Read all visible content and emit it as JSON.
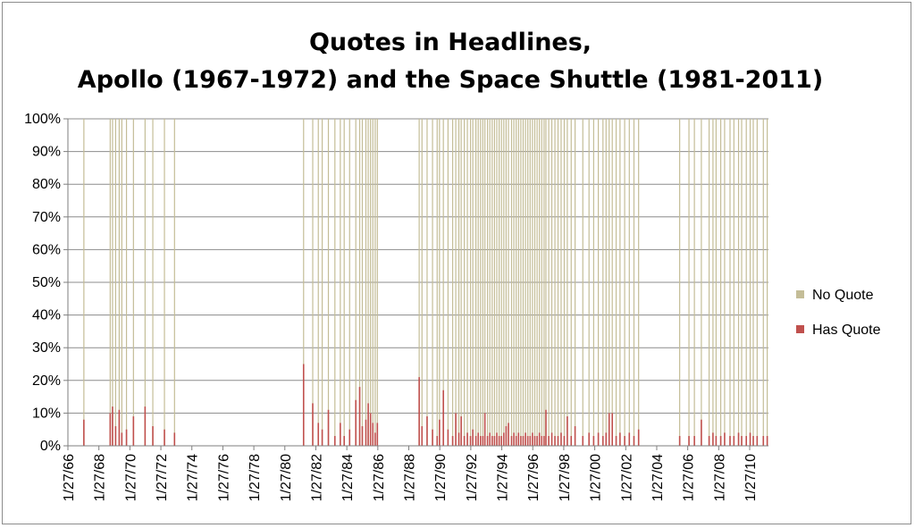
{
  "chart_data": {
    "type": "bar",
    "stacked": "percent",
    "title": [
      "Quotes in Headlines,",
      "Apollo (1967-1972) and the Space Shuttle (1981-2011)"
    ],
    "xlabel": "",
    "ylabel": "",
    "ylim": [
      0,
      100
    ],
    "y_ticks": [
      "0%",
      "10%",
      "20%",
      "30%",
      "40%",
      "50%",
      "60%",
      "70%",
      "80%",
      "90%",
      "100%"
    ],
    "x_range": [
      1966.07,
      2011.28
    ],
    "x_ticks": [
      {
        "label": "1/27/66",
        "x": 1966.07
      },
      {
        "label": "1/27/68",
        "x": 1968.07
      },
      {
        "label": "1/27/70",
        "x": 1970.07
      },
      {
        "label": "1/27/72",
        "x": 1972.07
      },
      {
        "label": "1/27/74",
        "x": 1974.07
      },
      {
        "label": "1/27/76",
        "x": 1976.07
      },
      {
        "label": "1/27/78",
        "x": 1978.07
      },
      {
        "label": "1/27/80",
        "x": 1980.07
      },
      {
        "label": "1/27/82",
        "x": 1982.07
      },
      {
        "label": "1/27/84",
        "x": 1984.07
      },
      {
        "label": "1/27/86",
        "x": 1986.07
      },
      {
        "label": "1/27/88",
        "x": 1988.07
      },
      {
        "label": "1/27/90",
        "x": 1990.07
      },
      {
        "label": "1/27/92",
        "x": 1992.07
      },
      {
        "label": "1/27/94",
        "x": 1994.07
      },
      {
        "label": "1/27/96",
        "x": 1996.07
      },
      {
        "label": "1/27/98",
        "x": 1998.07
      },
      {
        "label": "1/27/00",
        "x": 2000.07
      },
      {
        "label": "1/27/02",
        "x": 2002.07
      },
      {
        "label": "1/27/04",
        "x": 2004.07
      },
      {
        "label": "1/27/06",
        "x": 2006.07
      },
      {
        "label": "1/27/08",
        "x": 2008.07
      },
      {
        "label": "1/27/10",
        "x": 2010.07
      }
    ],
    "grid": true,
    "legend_position": "right",
    "series": [
      {
        "name": "No Quote",
        "color": "#c4bd97"
      },
      {
        "name": "Has Quote",
        "color": "#c0504d"
      }
    ],
    "missions": [
      {
        "x": 1967.1,
        "has_quote": 8
      },
      {
        "x": 1968.8,
        "has_quote": 10
      },
      {
        "x": 1968.95,
        "has_quote": 12
      },
      {
        "x": 1969.15,
        "has_quote": 6
      },
      {
        "x": 1969.38,
        "has_quote": 11
      },
      {
        "x": 1969.55,
        "has_quote": 4
      },
      {
        "x": 1969.85,
        "has_quote": 5
      },
      {
        "x": 1970.3,
        "has_quote": 9
      },
      {
        "x": 1971.05,
        "has_quote": 12
      },
      {
        "x": 1971.55,
        "has_quote": 6
      },
      {
        "x": 1972.3,
        "has_quote": 5
      },
      {
        "x": 1972.95,
        "has_quote": 4
      },
      {
        "x": 1981.28,
        "has_quote": 25
      },
      {
        "x": 1981.87,
        "has_quote": 13
      },
      {
        "x": 1982.23,
        "has_quote": 7
      },
      {
        "x": 1982.48,
        "has_quote": 5
      },
      {
        "x": 1982.88,
        "has_quote": 11
      },
      {
        "x": 1983.3,
        "has_quote": 3
      },
      {
        "x": 1983.65,
        "has_quote": 7
      },
      {
        "x": 1983.9,
        "has_quote": 3
      },
      {
        "x": 1984.25,
        "has_quote": 5
      },
      {
        "x": 1984.65,
        "has_quote": 14
      },
      {
        "x": 1984.9,
        "has_quote": 18
      },
      {
        "x": 1985.07,
        "has_quote": 6
      },
      {
        "x": 1985.3,
        "has_quote": 8
      },
      {
        "x": 1985.45,
        "has_quote": 13
      },
      {
        "x": 1985.6,
        "has_quote": 10
      },
      {
        "x": 1985.75,
        "has_quote": 7
      },
      {
        "x": 1985.9,
        "has_quote": 4
      },
      {
        "x": 1986.04,
        "has_quote": 7
      },
      {
        "x": 1988.74,
        "has_quote": 21
      },
      {
        "x": 1988.92,
        "has_quote": 6
      },
      {
        "x": 1989.25,
        "has_quote": 9
      },
      {
        "x": 1989.6,
        "has_quote": 5
      },
      {
        "x": 1989.9,
        "has_quote": 3
      },
      {
        "x": 1990.05,
        "has_quote": 8
      },
      {
        "x": 1990.3,
        "has_quote": 17
      },
      {
        "x": 1990.6,
        "has_quote": 5
      },
      {
        "x": 1990.9,
        "has_quote": 3
      },
      {
        "x": 1991.1,
        "has_quote": 10
      },
      {
        "x": 1991.3,
        "has_quote": 4
      },
      {
        "x": 1991.45,
        "has_quote": 9
      },
      {
        "x": 1991.65,
        "has_quote": 3
      },
      {
        "x": 1991.85,
        "has_quote": 4
      },
      {
        "x": 1992.05,
        "has_quote": 3
      },
      {
        "x": 1992.2,
        "has_quote": 5
      },
      {
        "x": 1992.4,
        "has_quote": 3
      },
      {
        "x": 1992.55,
        "has_quote": 4
      },
      {
        "x": 1992.7,
        "has_quote": 3
      },
      {
        "x": 1992.85,
        "has_quote": 3
      },
      {
        "x": 1992.98,
        "has_quote": 10
      },
      {
        "x": 1993.15,
        "has_quote": 3
      },
      {
        "x": 1993.3,
        "has_quote": 4
      },
      {
        "x": 1993.45,
        "has_quote": 3
      },
      {
        "x": 1993.6,
        "has_quote": 3
      },
      {
        "x": 1993.75,
        "has_quote": 4
      },
      {
        "x": 1993.9,
        "has_quote": 3
      },
      {
        "x": 1994.05,
        "has_quote": 3
      },
      {
        "x": 1994.2,
        "has_quote": 4
      },
      {
        "x": 1994.35,
        "has_quote": 6
      },
      {
        "x": 1994.5,
        "has_quote": 7
      },
      {
        "x": 1994.7,
        "has_quote": 3
      },
      {
        "x": 1994.85,
        "has_quote": 4
      },
      {
        "x": 1995.0,
        "has_quote": 3
      },
      {
        "x": 1995.15,
        "has_quote": 4
      },
      {
        "x": 1995.3,
        "has_quote": 3
      },
      {
        "x": 1995.45,
        "has_quote": 3
      },
      {
        "x": 1995.6,
        "has_quote": 4
      },
      {
        "x": 1995.75,
        "has_quote": 3
      },
      {
        "x": 1995.9,
        "has_quote": 3
      },
      {
        "x": 1996.05,
        "has_quote": 4
      },
      {
        "x": 1996.2,
        "has_quote": 3
      },
      {
        "x": 1996.35,
        "has_quote": 3
      },
      {
        "x": 1996.5,
        "has_quote": 4
      },
      {
        "x": 1996.65,
        "has_quote": 3
      },
      {
        "x": 1996.8,
        "has_quote": 3
      },
      {
        "x": 1996.92,
        "has_quote": 11
      },
      {
        "x": 1997.1,
        "has_quote": 3
      },
      {
        "x": 1997.3,
        "has_quote": 4
      },
      {
        "x": 1997.5,
        "has_quote": 3
      },
      {
        "x": 1997.7,
        "has_quote": 3
      },
      {
        "x": 1997.9,
        "has_quote": 4
      },
      {
        "x": 1998.1,
        "has_quote": 3
      },
      {
        "x": 1998.3,
        "has_quote": 9
      },
      {
        "x": 1998.55,
        "has_quote": 3
      },
      {
        "x": 1998.8,
        "has_quote": 6
      },
      {
        "x": 1999.3,
        "has_quote": 3
      },
      {
        "x": 1999.7,
        "has_quote": 4
      },
      {
        "x": 2000.0,
        "has_quote": 3
      },
      {
        "x": 2000.3,
        "has_quote": 4
      },
      {
        "x": 2000.6,
        "has_quote": 3
      },
      {
        "x": 2000.8,
        "has_quote": 4
      },
      {
        "x": 2001.0,
        "has_quote": 10
      },
      {
        "x": 2001.2,
        "has_quote": 10
      },
      {
        "x": 2001.45,
        "has_quote": 3
      },
      {
        "x": 2001.7,
        "has_quote": 4
      },
      {
        "x": 2002.0,
        "has_quote": 3
      },
      {
        "x": 2002.3,
        "has_quote": 4
      },
      {
        "x": 2002.6,
        "has_quote": 3
      },
      {
        "x": 2002.9,
        "has_quote": 5
      },
      {
        "x": 2005.55,
        "has_quote": 3
      },
      {
        "x": 2006.15,
        "has_quote": 3
      },
      {
        "x": 2006.5,
        "has_quote": 3
      },
      {
        "x": 2006.95,
        "has_quote": 8
      },
      {
        "x": 2007.45,
        "has_quote": 3
      },
      {
        "x": 2007.7,
        "has_quote": 4
      },
      {
        "x": 2007.9,
        "has_quote": 3
      },
      {
        "x": 2008.2,
        "has_quote": 3
      },
      {
        "x": 2008.45,
        "has_quote": 4
      },
      {
        "x": 2008.8,
        "has_quote": 3
      },
      {
        "x": 2009.05,
        "has_quote": 3
      },
      {
        "x": 2009.35,
        "has_quote": 4
      },
      {
        "x": 2009.55,
        "has_quote": 3
      },
      {
        "x": 2009.85,
        "has_quote": 3
      },
      {
        "x": 2010.1,
        "has_quote": 4
      },
      {
        "x": 2010.3,
        "has_quote": 3
      },
      {
        "x": 2010.55,
        "has_quote": 3
      },
      {
        "x": 2010.95,
        "has_quote": 3
      },
      {
        "x": 2011.2,
        "has_quote": 3
      }
    ]
  }
}
